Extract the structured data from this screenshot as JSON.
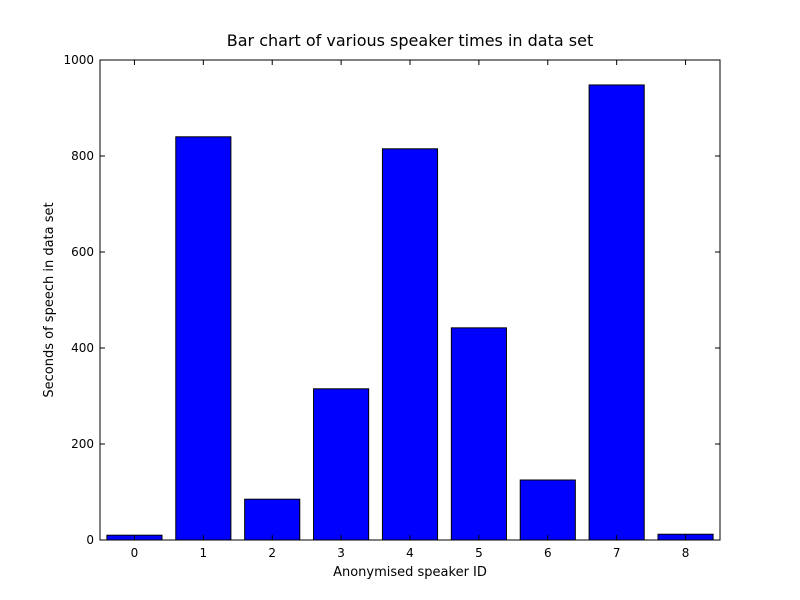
{
  "chart_data": {
    "type": "bar",
    "title": "Bar chart of various speaker times in data set",
    "xlabel": "Anonymised speaker ID",
    "ylabel": "Seconds of speech in data set",
    "categories": [
      "0",
      "1",
      "2",
      "3",
      "4",
      "5",
      "6",
      "7",
      "8"
    ],
    "values": [
      10,
      840,
      85,
      315,
      815,
      442,
      125,
      948,
      12
    ],
    "ylim": [
      0,
      1000
    ],
    "yticks": [
      "0",
      "200",
      "400",
      "600",
      "800",
      "1000"
    ],
    "grid": false,
    "bar_color": "#0000ff",
    "edge_color": "#000000"
  }
}
